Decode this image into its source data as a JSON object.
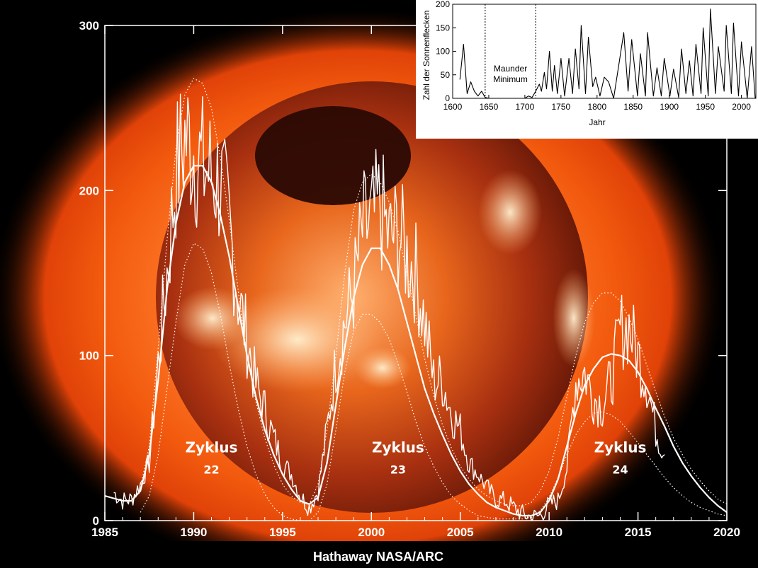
{
  "chart_data": [
    {
      "type": "line",
      "title": "",
      "xlabel": "",
      "ylabel": "",
      "xlim": [
        1985,
        2020
      ],
      "ylim": [
        0,
        300
      ],
      "x_ticks": [
        "1985",
        "1990",
        "1995",
        "2000",
        "2005",
        "2010",
        "2015",
        "2020"
      ],
      "y_ticks": [
        "0",
        "100",
        "200",
        "300"
      ],
      "grid": false,
      "background": "x-ray image of the sun (orange corona)",
      "series": [
        {
          "style": "monthly-noisy-white",
          "x": [
            1985.5,
            1986.0,
            1986.5,
            1987.0,
            1987.5,
            1988.0,
            1988.5,
            1989.0,
            1989.5,
            1990.0,
            1990.5,
            1991.0,
            1991.5,
            1992.0,
            1992.5,
            1993.0,
            1993.5,
            1994.0,
            1994.5,
            1995.0,
            1995.5,
            1996.0,
            1996.5,
            1997.0,
            1997.5,
            1998.0,
            1998.5,
            1999.0,
            1999.5,
            2000.0,
            2000.5,
            2001.0,
            2001.5,
            2002.0,
            2002.5,
            2003.0,
            2003.5,
            2004.0,
            2004.5,
            2005.0,
            2005.5,
            2006.0,
            2006.5,
            2007.0,
            2007.5,
            2008.0,
            2008.5,
            2009.0,
            2009.5,
            2010.0,
            2010.5,
            2011.0,
            2011.5,
            2012.0,
            2012.5,
            2013.0,
            2013.5,
            2014.0,
            2014.5,
            2015.0,
            2015.5,
            2016.0,
            2016.5
          ],
          "values": [
            17,
            12,
            13,
            22,
            35,
            95,
            150,
            210,
            232,
            226,
            214,
            210,
            205,
            178,
            136,
            110,
            82,
            67,
            50,
            35,
            28,
            15,
            8,
            18,
            55,
            95,
            120,
            140,
            175,
            180,
            190,
            170,
            175,
            160,
            150,
            120,
            85,
            85,
            65,
            55,
            35,
            28,
            20,
            13,
            12,
            8,
            4,
            2,
            3,
            10,
            12,
            32,
            85,
            90,
            75,
            70,
            85,
            115,
            118,
            100,
            85,
            55,
            40
          ]
        },
        {
          "style": "smoothed-solid",
          "x": [
            1985.0,
            1986.0,
            1986.5,
            1987.0,
            1987.5,
            1988.0,
            1988.5,
            1989.0,
            1989.5,
            1990.0,
            1990.5,
            1991.0,
            1991.5,
            1992.0,
            1992.5,
            1993.0,
            1993.5,
            1994.0,
            1994.5,
            1995.0,
            1995.5,
            1996.0,
            1996.5,
            1997.0,
            1997.5,
            1998.0,
            1998.5,
            1999.0,
            1999.5,
            2000.0,
            2000.5,
            2001.0,
            2001.5,
            2002.0,
            2002.5,
            2003.0,
            2003.5,
            2004.0,
            2004.5,
            2005.0,
            2005.5,
            2006.0,
            2006.5,
            2007.0,
            2007.5,
            2008.0,
            2008.5,
            2009.0,
            2009.5,
            2010.0,
            2010.5,
            2011.0,
            2011.5,
            2012.0,
            2012.5,
            2013.0,
            2013.5,
            2014.0,
            2014.5,
            2015.0,
            2015.5,
            2016.0,
            2016.5,
            2017.0,
            2017.5,
            2018.0,
            2018.5,
            2019.0,
            2019.5,
            2020.0
          ],
          "values": [
            15,
            12,
            12,
            18,
            40,
            85,
            140,
            180,
            205,
            215,
            215,
            205,
            185,
            160,
            130,
            100,
            75,
            55,
            40,
            28,
            19,
            12,
            10,
            14,
            35,
            70,
            105,
            135,
            155,
            165,
            165,
            155,
            140,
            120,
            100,
            80,
            65,
            52,
            40,
            30,
            22,
            16,
            11,
            8,
            6,
            4,
            3,
            3,
            5,
            12,
            25,
            45,
            65,
            82,
            92,
            99,
            101,
            100,
            97,
            90,
            80,
            68,
            57,
            45,
            35,
            27,
            20,
            14,
            9,
            5
          ]
        },
        {
          "style": "upper-envelope-dotted",
          "x": [
            1987.0,
            1987.5,
            1988.0,
            1988.5,
            1989.0,
            1989.5,
            1990.0,
            1990.5,
            1991.0,
            1991.5,
            1992.0,
            1992.5,
            1993.0,
            1993.5,
            1994.0,
            1994.5,
            1995.0,
            1995.5,
            1996.0,
            1996.5,
            1997.0,
            1997.5,
            1998.0,
            1998.5,
            1999.0,
            1999.5,
            2000.0,
            2000.5,
            2001.0,
            2001.5,
            2002.0,
            2002.5,
            2003.0,
            2003.5,
            2004.0,
            2004.5,
            2005.0,
            2005.5,
            2006.0,
            2006.5,
            2007.0,
            2007.5,
            2008.0,
            2008.5,
            2009.0,
            2009.5,
            2010.0,
            2010.5,
            2011.0,
            2011.5,
            2012.0,
            2012.5,
            2013.0,
            2013.5,
            2014.0,
            2014.5,
            2015.0,
            2015.5,
            2016.0,
            2016.5,
            2017.0,
            2017.5,
            2018.0,
            2018.5,
            2019.0,
            2019.5,
            2020.0
          ],
          "values": [
            20,
            45,
            105,
            170,
            225,
            258,
            268,
            265,
            250,
            220,
            182,
            140,
            100,
            72,
            50,
            34,
            22,
            15,
            11,
            10,
            22,
            55,
            100,
            150,
            188,
            205,
            210,
            205,
            193,
            175,
            150,
            124,
            98,
            76,
            58,
            44,
            33,
            25,
            19,
            15,
            12,
            10,
            9,
            9,
            11,
            18,
            30,
            50,
            75,
            100,
            120,
            132,
            138,
            138,
            133,
            123,
            110,
            94,
            78,
            63,
            50,
            40,
            31,
            24,
            18,
            13,
            10
          ]
        },
        {
          "style": "lower-envelope-dotted",
          "x": [
            1987.0,
            1987.5,
            1988.0,
            1988.5,
            1989.0,
            1989.5,
            1990.0,
            1990.5,
            1991.0,
            1991.5,
            1992.0,
            1992.5,
            1993.0,
            1993.5,
            1994.0,
            1994.5,
            1995.0,
            1995.5,
            1996.0,
            1996.5,
            1997.0,
            1997.5,
            1998.0,
            1998.5,
            1999.0,
            1999.5,
            2000.0,
            2000.5,
            2001.0,
            2001.5,
            2002.0,
            2002.5,
            2003.0,
            2003.5,
            2004.0,
            2004.5,
            2005.0,
            2005.5,
            2006.0,
            2006.5,
            2007.0,
            2007.5,
            2008.0,
            2008.5,
            2009.0,
            2009.5,
            2010.0,
            2010.5,
            2011.0,
            2011.5,
            2012.0,
            2012.5,
            2013.0,
            2013.5,
            2014.0,
            2014.5,
            2015.0,
            2015.5,
            2016.0,
            2016.5,
            2017.0,
            2017.5,
            2018.0,
            2018.5,
            2019.0,
            2019.5,
            2020.0
          ],
          "values": [
            5,
            15,
            40,
            80,
            120,
            155,
            168,
            165,
            150,
            125,
            95,
            68,
            45,
            28,
            16,
            8,
            3,
            1,
            0,
            0,
            5,
            22,
            55,
            90,
            115,
            125,
            125,
            120,
            110,
            95,
            78,
            60,
            45,
            33,
            23,
            15,
            10,
            6,
            3,
            2,
            1,
            1,
            1,
            1,
            2,
            6,
            14,
            26,
            40,
            52,
            60,
            65,
            66,
            64,
            60,
            54,
            47,
            40,
            33,
            26,
            20,
            15,
            11,
            8,
            6,
            4,
            3
          ]
        }
      ],
      "annotations": [
        {
          "label": "Zyklus",
          "number": "22",
          "x": 1991.0,
          "y": 35
        },
        {
          "label": "Zyklus",
          "number": "23",
          "x": 2001.5,
          "y": 35
        },
        {
          "label": "Zyklus",
          "number": "24",
          "x": 2014.0,
          "y": 35
        }
      ],
      "credit": "Hathaway  NASA/ARC"
    },
    {
      "type": "line",
      "title": "",
      "xlabel": "Jahr",
      "ylabel": "Zahl der Sonnenflecken",
      "xlim": [
        1600,
        2020
      ],
      "ylim": [
        0,
        200
      ],
      "x_ticks": [
        "1600",
        "1650",
        "1700",
        "1750",
        "1800",
        "1850",
        "1900",
        "1950",
        "2000"
      ],
      "y_ticks": [
        "0",
        "50",
        "100",
        "150",
        "200"
      ],
      "grid": false,
      "vertical_markers": [
        1645,
        1715
      ],
      "annotations": [
        {
          "label": "Maunder",
          "label2": "Minimum",
          "x": 1680,
          "y": 45
        }
      ],
      "x": [
        1610,
        1615,
        1620,
        1625,
        1630,
        1635,
        1640,
        1645,
        1650,
        1660,
        1670,
        1680,
        1690,
        1700,
        1705,
        1710,
        1715,
        1720,
        1723,
        1727,
        1730,
        1734,
        1738,
        1741,
        1745,
        1750,
        1755,
        1761,
        1766,
        1770,
        1775,
        1778,
        1784,
        1788,
        1794,
        1798,
        1804,
        1810,
        1816,
        1823,
        1830,
        1837,
        1843,
        1848,
        1856,
        1860,
        1867,
        1870,
        1878,
        1883,
        1889,
        1893,
        1901,
        1906,
        1913,
        1917,
        1923,
        1928,
        1933,
        1937,
        1944,
        1947,
        1954,
        1957,
        1964,
        1968,
        1976,
        1979,
        1986,
        1989,
        1996,
        2000,
        2008,
        2014,
        2019
      ],
      "values": [
        40,
        115,
        10,
        35,
        15,
        5,
        15,
        2,
        0,
        0,
        0,
        0,
        0,
        0,
        5,
        2,
        15,
        30,
        15,
        55,
        20,
        100,
        15,
        70,
        10,
        85,
        5,
        85,
        10,
        105,
        20,
        155,
        10,
        130,
        25,
        45,
        5,
        45,
        35,
        0,
        70,
        140,
        15,
        125,
        5,
        95,
        5,
        140,
        5,
        65,
        5,
        85,
        5,
        62,
        2,
        105,
        10,
        80,
        5,
        115,
        10,
        150,
        5,
        190,
        10,
        110,
        15,
        155,
        10,
        160,
        5,
        120,
        0,
        110,
        0
      ]
    }
  ]
}
